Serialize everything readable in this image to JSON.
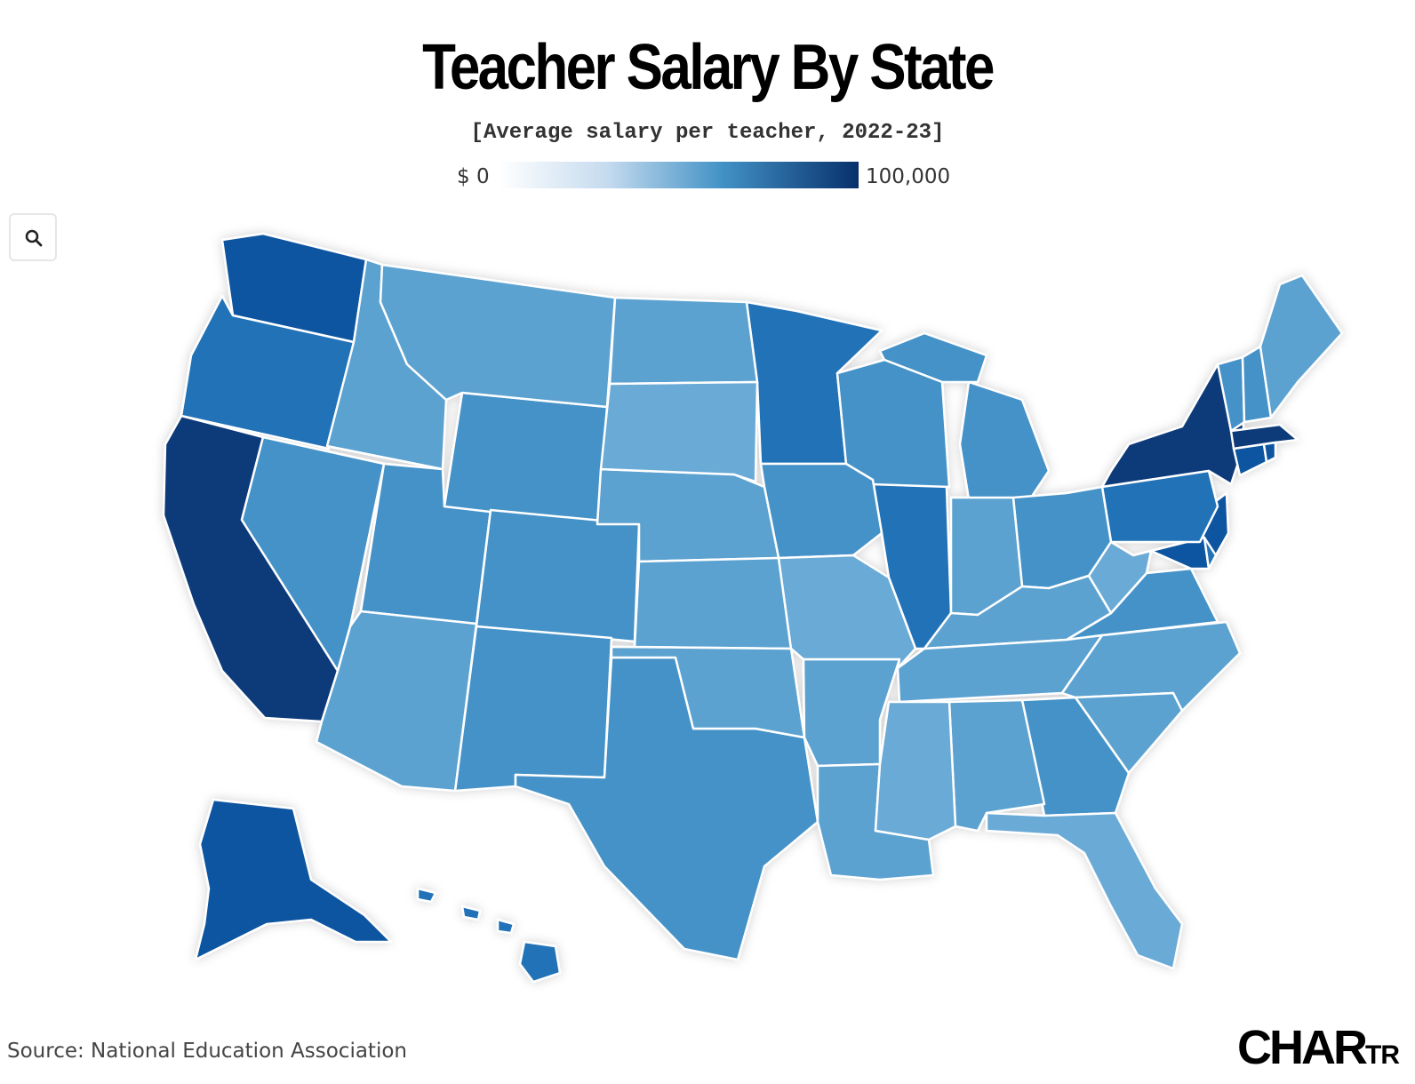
{
  "title": "Teacher Salary By State",
  "subtitle": "[Average salary per teacher, 2022-23]",
  "legend": {
    "min_label": "$ 0",
    "max_label": "100,000",
    "min_value": 0,
    "max_value": 100000
  },
  "zoom_button": {
    "icon": "search-icon"
  },
  "source": "Source: National Education Association",
  "logo": {
    "main": "CHAR",
    "tail": "TR"
  },
  "colors": {
    "darkest": "#0b3a7a",
    "dark": "#1155a0",
    "mid_dark": "#2472b8",
    "mid": "#4592c8",
    "mid_light": "#5ba2d1",
    "light": "#6aaad6"
  },
  "chart_data": {
    "type": "choropleth",
    "value_scale": [
      0,
      100000
    ],
    "states": [
      {
        "id": "CA",
        "level": "darkest"
      },
      {
        "id": "NY",
        "level": "darkest"
      },
      {
        "id": "MA",
        "level": "darkest"
      },
      {
        "id": "WA",
        "level": "dark"
      },
      {
        "id": "CT",
        "level": "dark"
      },
      {
        "id": "NJ",
        "level": "dark"
      },
      {
        "id": "MD",
        "level": "dark"
      },
      {
        "id": "RI",
        "level": "dark"
      },
      {
        "id": "AK",
        "level": "dark"
      },
      {
        "id": "OR",
        "level": "mid_dark"
      },
      {
        "id": "IL",
        "level": "mid_dark"
      },
      {
        "id": "PA",
        "level": "mid_dark"
      },
      {
        "id": "MN",
        "level": "mid_dark"
      },
      {
        "id": "HI",
        "level": "mid_dark"
      },
      {
        "id": "DE",
        "level": "mid_dark"
      },
      {
        "id": "NV",
        "level": "mid"
      },
      {
        "id": "UT",
        "level": "mid"
      },
      {
        "id": "WY",
        "level": "mid"
      },
      {
        "id": "CO",
        "level": "mid"
      },
      {
        "id": "NM",
        "level": "mid"
      },
      {
        "id": "TX",
        "level": "mid"
      },
      {
        "id": "MI",
        "level": "mid"
      },
      {
        "id": "WI",
        "level": "mid"
      },
      {
        "id": "OH",
        "level": "mid"
      },
      {
        "id": "GA",
        "level": "mid"
      },
      {
        "id": "VA",
        "level": "mid"
      },
      {
        "id": "VT",
        "level": "mid"
      },
      {
        "id": "NH",
        "level": "mid"
      },
      {
        "id": "IA",
        "level": "mid"
      },
      {
        "id": "AZ",
        "level": "mid_light"
      },
      {
        "id": "ID",
        "level": "mid_light"
      },
      {
        "id": "MT",
        "level": "mid_light"
      },
      {
        "id": "ND",
        "level": "mid_light"
      },
      {
        "id": "NE",
        "level": "mid_light"
      },
      {
        "id": "KS",
        "level": "mid_light"
      },
      {
        "id": "OK",
        "level": "mid_light"
      },
      {
        "id": "AR",
        "level": "mid_light"
      },
      {
        "id": "LA",
        "level": "mid_light"
      },
      {
        "id": "AL",
        "level": "mid_light"
      },
      {
        "id": "IN",
        "level": "mid_light"
      },
      {
        "id": "KY",
        "level": "mid_light"
      },
      {
        "id": "TN",
        "level": "mid_light"
      },
      {
        "id": "NC",
        "level": "mid_light"
      },
      {
        "id": "SC",
        "level": "mid_light"
      },
      {
        "id": "ME",
        "level": "mid_light"
      },
      {
        "id": "MO",
        "level": "light"
      },
      {
        "id": "MS",
        "level": "light"
      },
      {
        "id": "FL",
        "level": "light"
      },
      {
        "id": "WV",
        "level": "light"
      },
      {
        "id": "SD",
        "level": "light"
      }
    ]
  }
}
